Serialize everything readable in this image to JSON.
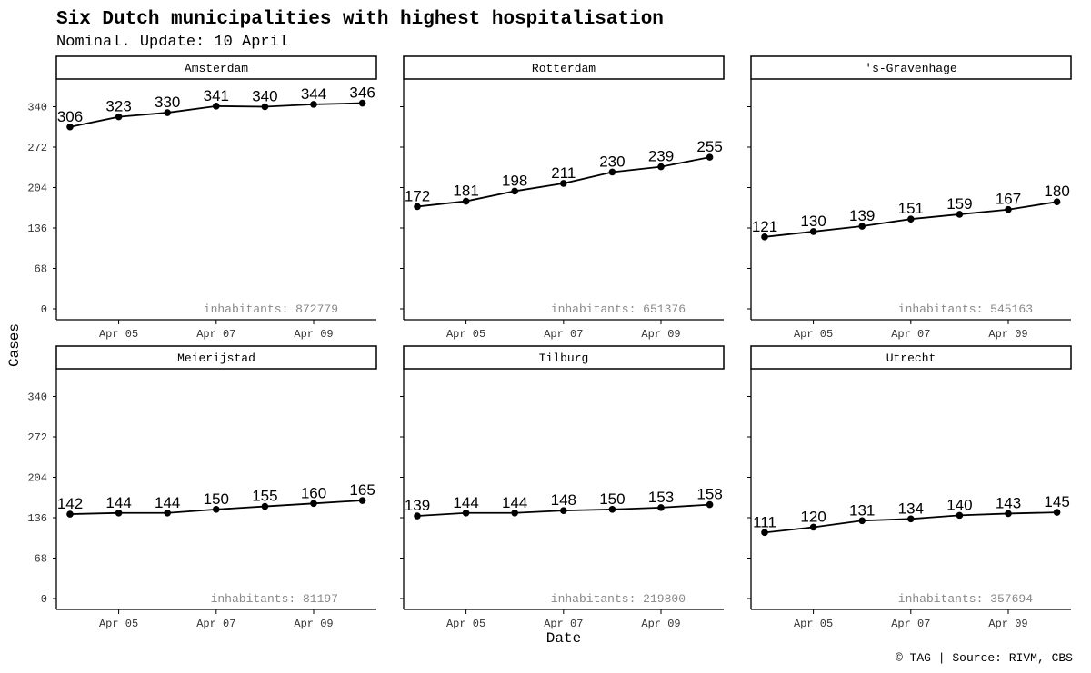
{
  "title": "Six Dutch municipalities with highest hospitalisation",
  "subtitle": "Nominal. Update: 10 April",
  "caption": "© TAG | Source: RIVM, CBS",
  "chart_data": {
    "type": "line",
    "xlabel": "Date",
    "ylabel": "Cases",
    "x": [
      "Apr 04",
      "Apr 05",
      "Apr 06",
      "Apr 07",
      "Apr 08",
      "Apr 09",
      "Apr 10"
    ],
    "x_tick_labels": [
      "Apr 05",
      "Apr 07",
      "Apr 09"
    ],
    "y_ticks": [
      0,
      68,
      136,
      204,
      272,
      340
    ],
    "grid": false,
    "series": [
      {
        "name": "Amsterdam",
        "values": [
          306,
          323,
          330,
          341,
          340,
          344,
          346
        ],
        "note": "inhabitants: 872779"
      },
      {
        "name": "Rotterdam",
        "values": [
          172,
          181,
          198,
          211,
          230,
          239,
          255
        ],
        "note": "inhabitants: 651376"
      },
      {
        "name": "'s-Gravenhage",
        "values": [
          121,
          130,
          139,
          151,
          159,
          167,
          180
        ],
        "note": "inhabitants: 545163"
      },
      {
        "name": "Meierijstad",
        "values": [
          142,
          144,
          144,
          150,
          155,
          160,
          165
        ],
        "note": "inhabitants: 81197"
      },
      {
        "name": "Tilburg",
        "values": [
          139,
          144,
          144,
          148,
          150,
          153,
          158
        ],
        "note": "inhabitants: 219800"
      },
      {
        "name": "Utrecht",
        "values": [
          111,
          120,
          131,
          134,
          140,
          143,
          145
        ],
        "note": "inhabitants: 357694"
      }
    ]
  }
}
